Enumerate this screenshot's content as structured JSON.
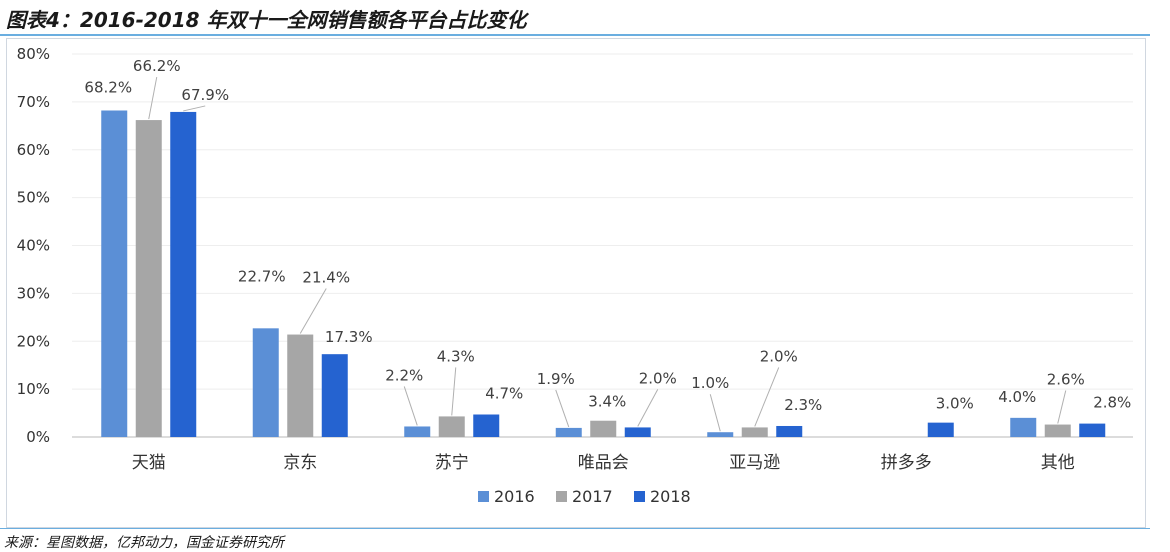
{
  "title": "图表4：2016-2018 年双十一全网销售额各平台占比变化",
  "source": "来源：星图数据，亿邦动力，国金证券研究所",
  "colors": {
    "2016": "#5b8fd6",
    "2017": "#a6a6a6",
    "2018": "#2563d0"
  },
  "chart_data": {
    "type": "bar",
    "title": "2016-2018 年双十一全网销售额各平台占比变化",
    "xlabel": "",
    "ylabel": "",
    "ylim": [
      0,
      80
    ],
    "yticks": [
      "0%",
      "10%",
      "20%",
      "30%",
      "40%",
      "50%",
      "60%",
      "70%",
      "80%"
    ],
    "legend_position": "bottom",
    "categories": [
      "天猫",
      "京东",
      "苏宁",
      "唯品会",
      "亚马逊",
      "拼多多",
      "其他"
    ],
    "series": [
      {
        "name": "2016",
        "values": [
          68.2,
          22.7,
          2.2,
          1.9,
          1.0,
          null,
          4.0
        ],
        "labels": [
          "68.2%",
          "22.7%",
          "2.2%",
          "1.9%",
          "1.0%",
          "",
          "4.0%"
        ]
      },
      {
        "name": "2017",
        "values": [
          66.2,
          21.4,
          4.3,
          3.4,
          2.0,
          null,
          2.6
        ],
        "labels": [
          "66.2%",
          "21.4%",
          "4.3%",
          "3.4%",
          "2.0%",
          "",
          "2.6%"
        ]
      },
      {
        "name": "2018",
        "values": [
          67.9,
          17.3,
          4.7,
          2.0,
          2.3,
          3.0,
          2.8
        ],
        "labels": [
          "67.9%",
          "17.3%",
          "4.7%",
          "2.0%",
          "2.3%",
          "3.0%",
          "2.8%"
        ]
      }
    ]
  }
}
